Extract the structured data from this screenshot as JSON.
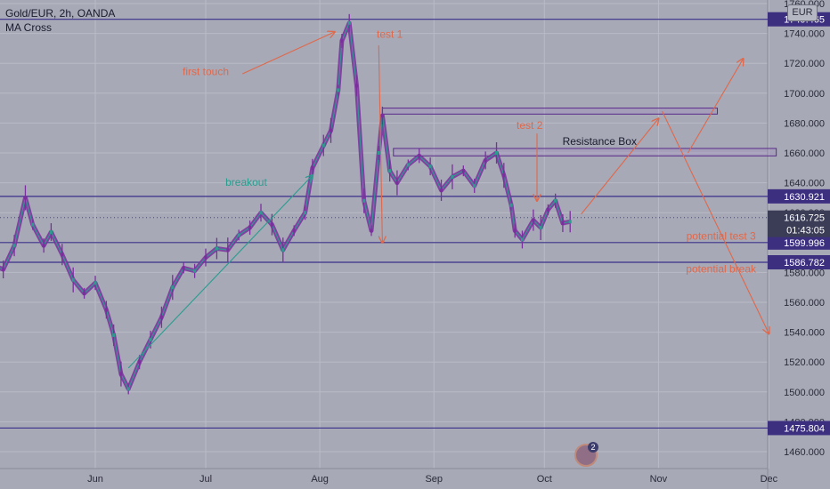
{
  "header": {
    "symbol_title": "Gold/EUR, 2h, OANDA",
    "indicator": "MA Cross",
    "currency": "EUR",
    "alert_count": "2"
  },
  "colors": {
    "background": "#a7a9b6",
    "grid": "#b9bbc6",
    "candle_up": "#2a9d8f",
    "candle_down": "#7b2f9e",
    "level_line": "#3a2f8a",
    "annotation": "#e0684b",
    "breakout": "#2a9d8f",
    "label_box": "#3d2f80"
  },
  "chart_data": {
    "type": "line",
    "ylim": [
      1450,
      1770
    ],
    "y_ticks": [
      1460,
      1480,
      1500,
      1520,
      1540,
      1560,
      1580,
      1600,
      1620,
      1640,
      1660,
      1680,
      1700,
      1720,
      1740,
      1760
    ],
    "y_tick_labels": [
      "1460.000",
      "1480.000",
      "1500.000",
      "1520.000",
      "1540.000",
      "1560.000",
      "1580.000",
      "1600.000",
      "1620.000",
      "1640.000",
      "1660.000",
      "1680.000",
      "1700.000",
      "1720.000",
      "1740.000",
      "1760.000"
    ],
    "x_range": [
      "2020-05-01",
      "2020-12-03"
    ],
    "x_ticks": [
      "2020-06-01",
      "2020-07-01",
      "2020-08-01",
      "2020-09-01",
      "2020-10-01",
      "2020-11-01",
      "2020-12-01"
    ],
    "x_tick_labels": [
      "Jun",
      "Jul",
      "Aug",
      "Sep",
      "Oct",
      "Nov",
      "Dec"
    ],
    "series": [
      {
        "x": [
          "2020-05-01",
          "2020-05-04",
          "2020-05-07",
          "2020-05-10",
          "2020-05-13",
          "2020-05-15",
          "2020-05-18",
          "2020-05-20",
          "2020-05-23",
          "2020-05-26",
          "2020-05-29",
          "2020-06-01",
          "2020-06-04",
          "2020-06-06",
          "2020-06-08",
          "2020-06-10",
          "2020-06-13",
          "2020-06-16",
          "2020-06-19",
          "2020-06-22",
          "2020-06-25",
          "2020-06-28",
          "2020-07-01",
          "2020-07-04",
          "2020-07-07",
          "2020-07-10",
          "2020-07-13",
          "2020-07-16",
          "2020-07-19",
          "2020-07-22",
          "2020-07-25",
          "2020-07-28",
          "2020-07-30",
          "2020-08-02",
          "2020-08-04",
          "2020-08-06",
          "2020-08-07",
          "2020-08-09",
          "2020-08-11",
          "2020-08-13",
          "2020-08-15",
          "2020-08-17",
          "2020-08-18",
          "2020-08-20",
          "2020-08-22",
          "2020-08-25",
          "2020-08-28",
          "2020-08-31",
          "2020-09-03",
          "2020-09-06",
          "2020-09-09",
          "2020-09-12",
          "2020-09-15",
          "2020-09-18",
          "2020-09-20",
          "2020-09-22",
          "2020-09-23",
          "2020-09-25",
          "2020-09-28",
          "2020-09-30",
          "2020-10-02",
          "2020-10-04",
          "2020-10-06",
          "2020-10-08"
        ],
        "y": [
          1578,
          1585,
          1582,
          1598,
          1630,
          1612,
          1598,
          1607,
          1592,
          1575,
          1566,
          1573,
          1555,
          1538,
          1512,
          1502,
          1520,
          1535,
          1550,
          1570,
          1583,
          1581,
          1590,
          1596,
          1595,
          1605,
          1610,
          1620,
          1612,
          1595,
          1608,
          1620,
          1650,
          1665,
          1675,
          1702,
          1735,
          1747,
          1705,
          1628,
          1608,
          1660,
          1685,
          1648,
          1640,
          1652,
          1658,
          1651,
          1635,
          1644,
          1648,
          1638,
          1655,
          1660,
          1645,
          1625,
          1608,
          1602,
          1615,
          1610,
          1622,
          1628,
          1613,
          1614
        ]
      }
    ],
    "price_levels": [
      {
        "value": 1749.465,
        "label": "1749.465"
      },
      {
        "value": 1630.921,
        "label": "1630.921"
      },
      {
        "value": 1599.996,
        "label": "1599.996"
      },
      {
        "value": 1586.782,
        "label": "1586.782"
      },
      {
        "value": 1475.804,
        "label": "1475.804"
      }
    ],
    "current_price": {
      "value": 1616.725,
      "label": "1616.725",
      "countdown": "01:43:05"
    },
    "resistance_box": {
      "label": "Resistance Box",
      "x": [
        "2020-08-21",
        "2020-12-03"
      ],
      "y": [
        1658,
        1663
      ]
    },
    "target_box": {
      "x": [
        "2020-08-18",
        "2020-11-17"
      ],
      "y": [
        1686,
        1690
      ]
    },
    "annotations": [
      {
        "text": "first touch",
        "x": "2020-07-01",
        "y": 1712
      },
      {
        "text": "test 1",
        "x": "2020-08-20",
        "y": 1737
      },
      {
        "text": "breakout",
        "x": "2020-07-12",
        "y": 1638
      },
      {
        "text": "test 2",
        "x": "2020-09-27",
        "y": 1676
      },
      {
        "text": "potential test 3",
        "x": "2020-11-18",
        "y": 1602
      },
      {
        "text": "potential break",
        "x": "2020-11-18",
        "y": 1580
      }
    ],
    "arrows": [
      {
        "color_key": "annotation",
        "from": [
          "2020-07-11",
          1713
        ],
        "to": [
          "2020-08-05",
          1741
        ]
      },
      {
        "color_key": "annotation",
        "from": [
          "2020-08-17",
          1732
        ],
        "to": [
          "2020-08-18",
          1600
        ]
      },
      {
        "color_key": "breakout",
        "from": [
          "2020-06-10",
          1516
        ],
        "to": [
          "2020-07-30",
          1645
        ]
      },
      {
        "color_key": "annotation",
        "from": [
          "2020-09-29",
          1673
        ],
        "to": [
          "2020-09-29",
          1628
        ]
      },
      {
        "color_key": "annotation",
        "from": [
          "2020-10-11",
          1619
        ],
        "to": [
          "2020-11-01",
          1683
        ]
      },
      {
        "color_key": "annotation",
        "from": [
          "2020-11-09",
          1660
        ],
        "to": [
          "2020-11-24",
          1723
        ]
      },
      {
        "color_key": "annotation",
        "from": [
          "2020-11-02",
          1688
        ],
        "to": [
          "2020-12-01",
          1539
        ]
      }
    ],
    "grid": true
  }
}
